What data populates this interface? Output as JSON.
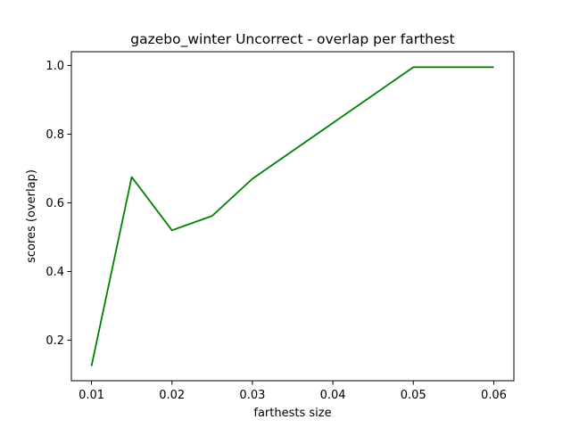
{
  "chart_data": {
    "type": "line",
    "title": "gazebo_winter Uncorrect - overlap per farthest",
    "xlabel": "farthests size",
    "ylabel": "scores (overlap)",
    "xlim": [
      0.0075,
      0.0625
    ],
    "ylim": [
      0.082,
      1.04
    ],
    "xticks": [
      0.01,
      0.02,
      0.03,
      0.04,
      0.05,
      0.06
    ],
    "xtick_labels": [
      "0.01",
      "0.02",
      "0.03",
      "0.04",
      "0.05",
      "0.06"
    ],
    "yticks": [
      0.2,
      0.4,
      0.6,
      0.8,
      1.0
    ],
    "ytick_labels": [
      "0.2",
      "0.4",
      "0.6",
      "0.8",
      "1.0"
    ],
    "grid": false,
    "series": [
      {
        "color": "#008000",
        "x": [
          0.01,
          0.015,
          0.02,
          0.025,
          0.03,
          0.05,
          0.06
        ],
        "y": [
          0.125,
          0.675,
          0.52,
          0.562,
          0.67,
          0.995,
          0.995
        ]
      }
    ]
  }
}
